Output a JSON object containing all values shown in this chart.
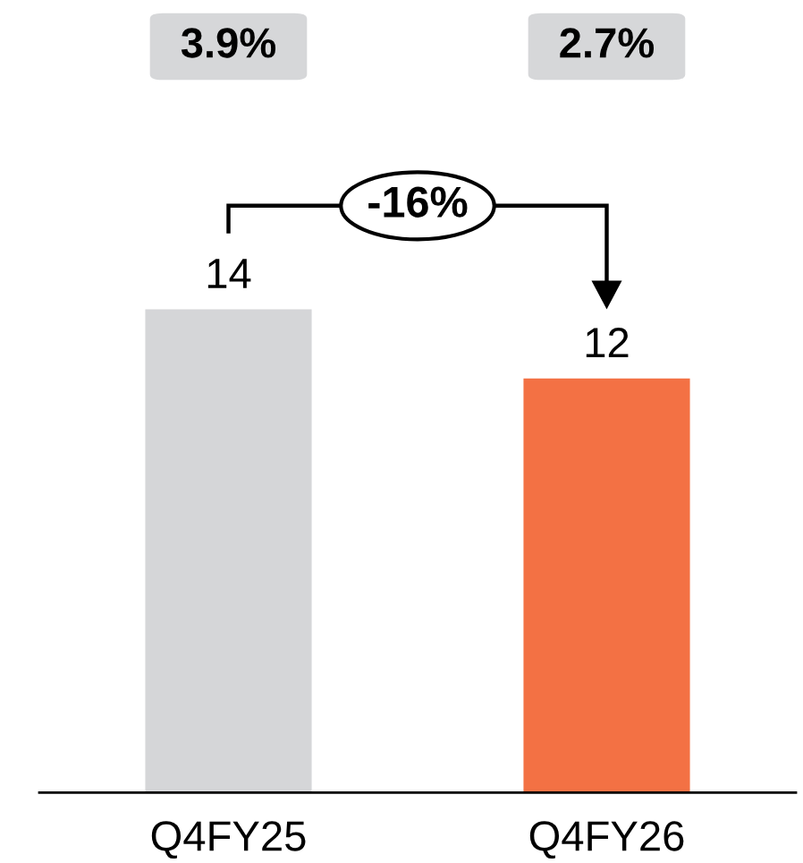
{
  "chart_data": {
    "type": "bar",
    "categories": [
      "Q4FY25",
      "Q4FY26"
    ],
    "values": [
      14,
      12
    ],
    "colors": [
      "#d5d6d8",
      "#f37144"
    ],
    "data_labels": true,
    "annotations": [
      "3.9%",
      "2.7%",
      "-16%"
    ]
  }
}
